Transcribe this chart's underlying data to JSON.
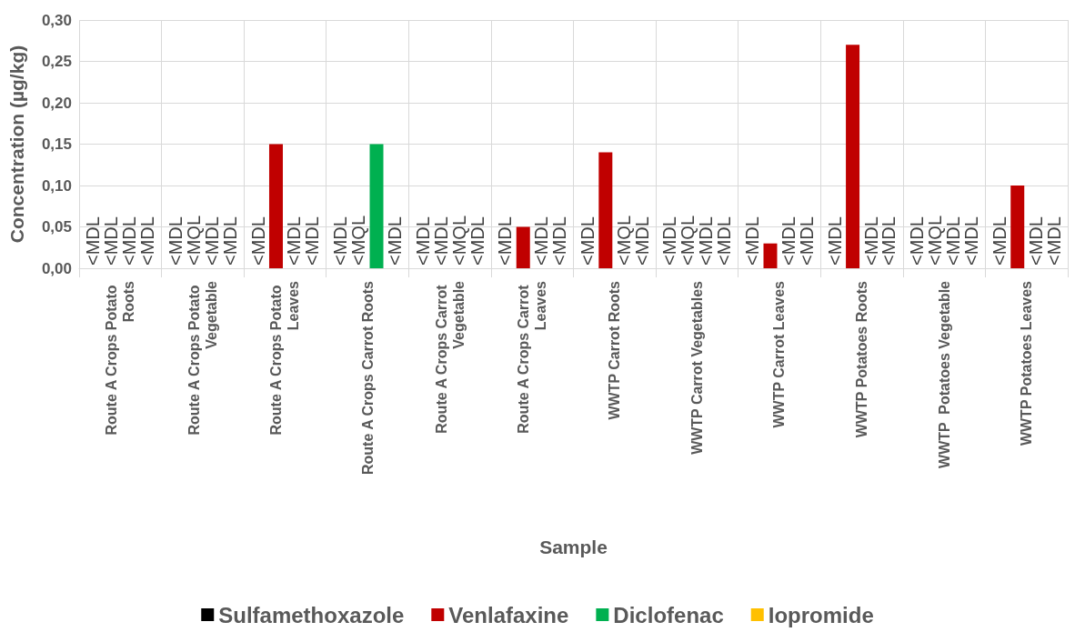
{
  "chart_data": {
    "type": "bar",
    "xlabel": "Sample",
    "ylabel": "Concentration (µg/kg)",
    "categories": [
      "Route A Crops Potato Roots",
      "Route A Crops Potato Vegetable",
      "Route A Crops Potato Leaves",
      "Route A Crops Carrot Roots",
      "Route A Crops Carrot Vegetable",
      "Route A Crops Carrot Leaves",
      "WWTP Carrot Roots",
      "WWTP Carrot Vegetables",
      "WWTP Carrot Leaves",
      "WWTP Potatoes Roots",
      "WWTP  Potatoes Vegetable",
      "WWTP Potatoes Leaves"
    ],
    "series": [
      {
        "name": "Sulfamethoxazole",
        "color": "#000000",
        "values": [
          null,
          null,
          null,
          null,
          null,
          null,
          null,
          null,
          null,
          null,
          null,
          null
        ],
        "value_labels": [
          "<MDL",
          "<MDL",
          "<MDL",
          "<MDL",
          "<MDL",
          "<MDL",
          "<MDL",
          "<MDL",
          "<MDL",
          "<MDL",
          "<MDL",
          "<MDL"
        ]
      },
      {
        "name": "Venlafaxine",
        "color": "#c00000",
        "values": [
          null,
          null,
          0.15,
          null,
          null,
          0.05,
          0.14,
          null,
          0.03,
          0.27,
          null,
          0.1
        ],
        "value_labels": [
          "<MDL",
          "<MQL",
          null,
          "<MQL",
          "<MDL",
          null,
          null,
          "<MQL",
          null,
          null,
          "<MQL",
          null
        ]
      },
      {
        "name": "Diclofenac",
        "color": "#00b050",
        "values": [
          null,
          null,
          null,
          0.15,
          null,
          null,
          null,
          null,
          null,
          null,
          null,
          null
        ],
        "value_labels": [
          "<MDL",
          "<MDL",
          "<MDL",
          null,
          "<MQL",
          "<MDL",
          "<MQL",
          "<MDL",
          "<MDL",
          "<MDL",
          "<MDL",
          "<MDL"
        ]
      },
      {
        "name": "Iopromide",
        "color": "#ffc000",
        "values": [
          null,
          null,
          null,
          null,
          null,
          null,
          null,
          null,
          null,
          null,
          null,
          null
        ],
        "value_labels": [
          "<MDL",
          "<MDL",
          "<MDL",
          "<MDL",
          "<MDL",
          "<MDL",
          "<MDL",
          "<MDL",
          "<MDL",
          "<MDL",
          "<MDL",
          "<MDL"
        ]
      }
    ],
    "ylim": [
      0,
      0.3
    ],
    "yticks": [
      {
        "value": 0,
        "label": "0,00"
      },
      {
        "value": 0.05,
        "label": "0,05"
      },
      {
        "value": 0.1,
        "label": "0,10"
      },
      {
        "value": 0.15,
        "label": "0,15"
      },
      {
        "value": 0.2,
        "label": "0,20"
      },
      {
        "value": 0.25,
        "label": "0,25"
      },
      {
        "value": 0.3,
        "label": "0,30"
      }
    ],
    "grid": true,
    "legend": "bottom"
  }
}
